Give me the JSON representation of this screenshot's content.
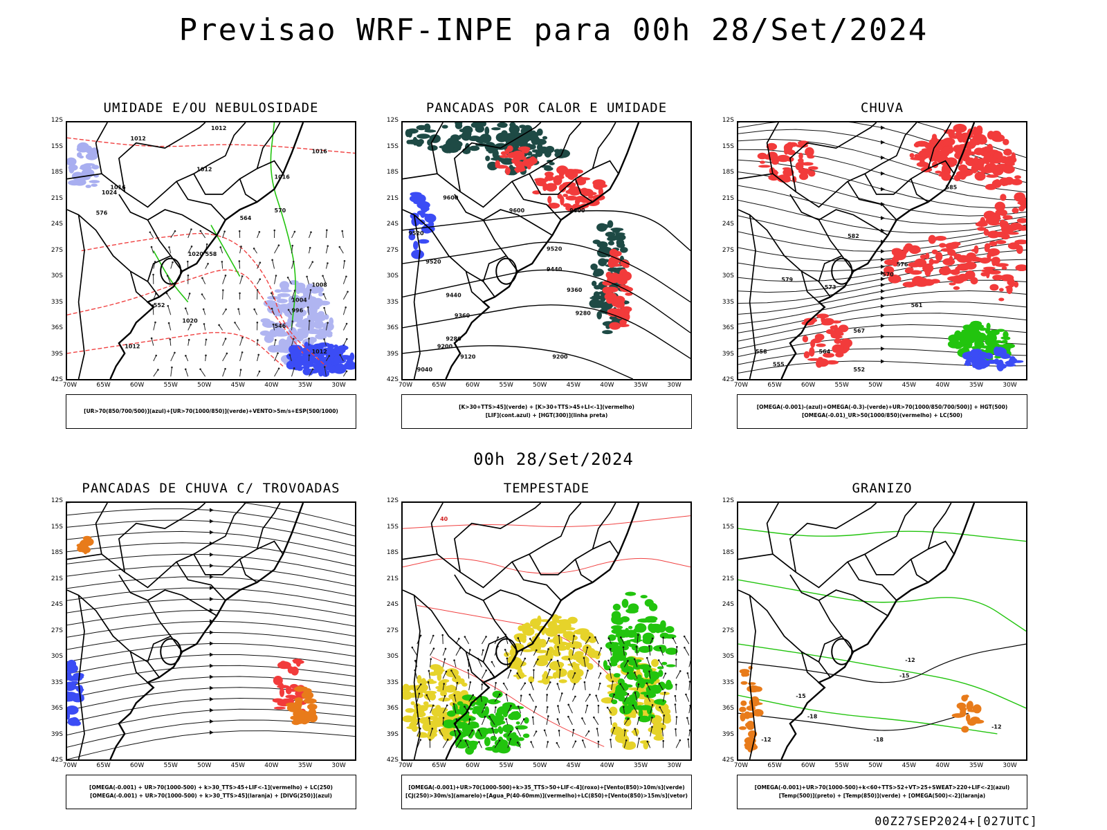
{
  "title": "Previsao WRF-INPE  para 00h 28/Set/2024",
  "mid_date": "00h 28/Set/2024",
  "footer": "00Z27SEP2024+[027UTC]",
  "lat_labels": [
    "12S",
    "15S",
    "18S",
    "21S",
    "24S",
    "27S",
    "30S",
    "33S",
    "36S",
    "39S",
    "42S"
  ],
  "lon_labels": [
    "70W",
    "65W",
    "60W",
    "55W",
    "50W",
    "45W",
    "40W",
    "35W",
    "30W"
  ],
  "colors": {
    "blue": "#3b4cf5",
    "green": "#22c40e",
    "red": "#f23b3b",
    "dark_teal": "#1e4a45",
    "yellow": "#e6d32a",
    "orange": "#e87b1a",
    "light_blue": "#a8aef0",
    "contour_red": "#f04040"
  },
  "panels": [
    {
      "title": "UMIDADE E/OU NEBULOSIDADE",
      "legend": [
        "[UR>70(850/700/500)](azul)+[UR>70(1000/850)](verde)+VENTO>5m/s+ESP(500/1000)"
      ],
      "labels": [
        "1012",
        "1012",
        "1012",
        "1016",
        "1016",
        "1020",
        "1020",
        "1024",
        "1012",
        "1016",
        "576",
        "570",
        "564",
        "558",
        "552",
        "546",
        "1012",
        "1004",
        "996",
        "1008"
      ]
    },
    {
      "title": "PANCADAS POR CALOR E UMIDADE",
      "legend": [
        "[K>30+TTS>45](verde) + [K>30+TTS>45+LI<-1](vermelho)",
        "[LIF](cont.azul) + [HGT(300)](linha preta)"
      ],
      "labels": [
        "9600",
        "9600",
        "9600",
        "9520",
        "9520",
        "9520",
        "9440",
        "9440",
        "9360",
        "9360",
        "9280",
        "9280",
        "9200",
        "9200",
        "9120",
        "9040"
      ]
    },
    {
      "title": "CHUVA",
      "legend": [
        "[OMEGA(-0.001)-(azul)+OMEGA(-0.3)-(verde)+UR>70(1000/850/700/500)] + HGT(500)",
        "[OMEGA(-0.01)_UR>50(1000/850)(vermelho) + LC(500)"
      ],
      "labels": [
        "585",
        "582",
        "579",
        "576",
        "573",
        "570",
        "567",
        "564",
        "561",
        "558",
        "555",
        "552"
      ]
    },
    {
      "title": "PANCADAS DE CHUVA C/ TROVOADAS",
      "legend": [
        "[OMEGA(-0.001) + UR>70(1000-500) + k>30_TTS>45+LIF<-1](vermelho) + LC(250)",
        "[OMEGA(-0.001) + UR>70(1000-500) + k>30_TTS>45](laranja) + [DIVG(250)](azul)"
      ],
      "labels": []
    },
    {
      "title": "TEMPESTADE",
      "legend": [
        "[OMEGA(-0.001)+UR>70(1000-500)+k>35_TTS>50+LIF<-4](roxo)+[Vento(850)>10m/s](verde)",
        "[CJ(250)>30m/s](amarelo)+[Agua_P(40-60mm)](vermelho)+LC(850)+[Vento(850)>15m/s](vetor)"
      ],
      "labels": [
        "40"
      ]
    },
    {
      "title": "GRANIZO",
      "legend": [
        "[OMEGA(-0.001)+UR>70(1000-500)+k<60+TTS>52+VT>25+SWEAT>220+LIF<-2](azul)",
        "[Temp(500)](preto) + [Temp(850)](verde) + [OMEGA(500)<-2](laranja)"
      ],
      "labels": [
        "-12",
        "-12",
        "-15",
        "-18",
        "-18",
        "-12",
        "-15"
      ]
    }
  ]
}
